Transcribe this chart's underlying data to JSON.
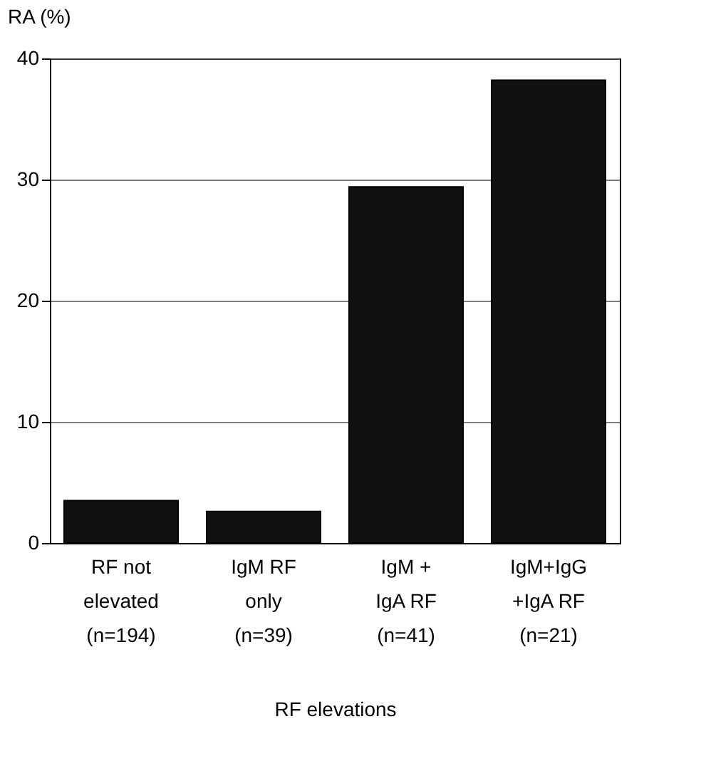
{
  "chart_data": {
    "type": "bar",
    "categories": [
      "RF not\nelevated\n(n=194)",
      "IgM RF\nonly\n\n(n=39)",
      "IgM +\nIgA RF\n\n(n=41)",
      "IgM+IgG\n+IgA RF\n\n(n=21)"
    ],
    "values": [
      3.5,
      2.6,
      29.4,
      38.2
    ],
    "color": "#111111",
    "ylabel": "RA  (%)",
    "xlabel": "RF elevations",
    "ylim": [
      0,
      40
    ],
    "yticks": [
      0,
      10,
      20,
      30,
      40
    ],
    "grid": "y"
  }
}
